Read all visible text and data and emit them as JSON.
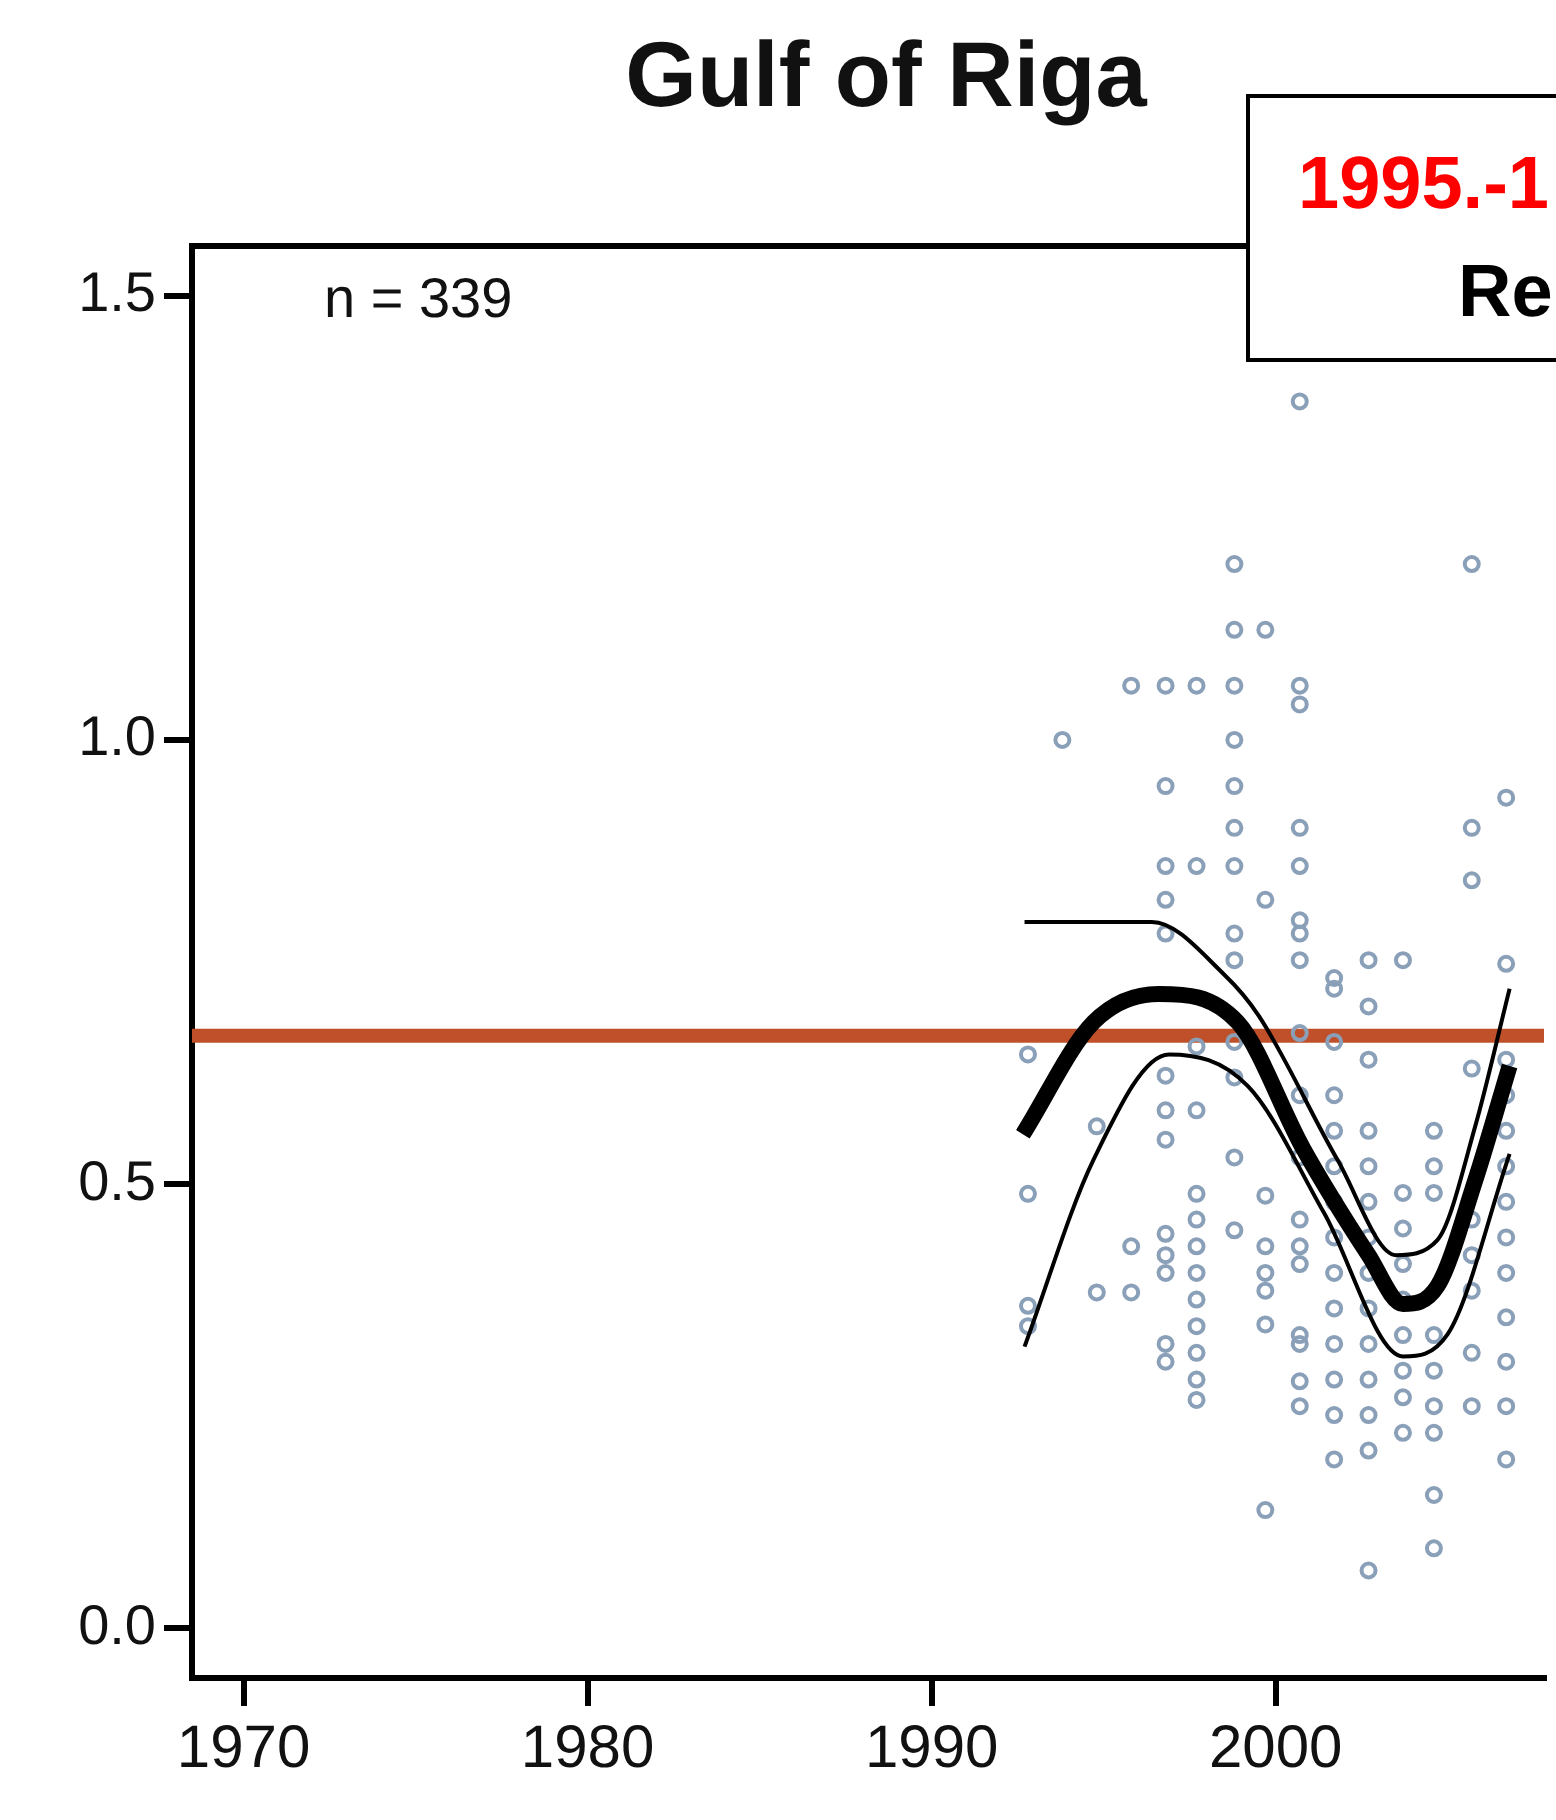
{
  "chart_data": {
    "type": "scatter",
    "title": "Gulf of Riga",
    "xlim": [
      1968.5,
      2007.8
    ],
    "xticks": [
      1970,
      1980,
      1990,
      2000
    ],
    "ylim": [
      -0.056,
      1.556
    ],
    "yticks": [
      {
        "value": 0,
        "label": "0.0"
      },
      {
        "value": 0.5,
        "label": "0.5"
      },
      {
        "value": 1,
        "label": "1.0"
      },
      {
        "value": 1.5,
        "label": "1.5"
      }
    ],
    "grid": false,
    "legend": false,
    "annotations": [
      "n = 339",
      "1995.-1",
      "Re"
    ],
    "ref_lines": [
      {
        "axis": "y",
        "value": 0.667,
        "color": "#c0502a"
      }
    ],
    "series": [
      {
        "type": "scatter",
        "color": "#8a9fb8",
        "marker": "circle",
        "x": [
          1992.8,
          1992.8,
          1992.8,
          1992.8,
          1993.8,
          1994.8,
          1994.8,
          1995.8,
          1995.8,
          1995.8,
          1996.8,
          1996.8,
          1996.8,
          1996.8,
          1996.8,
          1996.8,
          1996.8,
          1996.8,
          1996.8,
          1996.8,
          1996.8,
          1996.8,
          1996.8,
          1997.7,
          1997.7,
          1997.7,
          1997.7,
          1997.7,
          1997.7,
          1997.7,
          1997.7,
          1997.7,
          1997.7,
          1997.7,
          1997.7,
          1997.7,
          1998.8,
          1998.8,
          1998.8,
          1998.8,
          1998.8,
          1998.8,
          1998.8,
          1998.8,
          1998.8,
          1998.8,
          1998.8,
          1998.8,
          1998.8,
          1999.7,
          1999.7,
          1999.7,
          1999.7,
          1999.7,
          1999.7,
          1999.7,
          1999.7,
          2000.7,
          2000.7,
          2000.7,
          2000.7,
          2000.7,
          2000.7,
          2000.7,
          2000.7,
          2000.7,
          2000.7,
          2000.7,
          2000.7,
          2000.7,
          2000.7,
          2000.7,
          2000.7,
          2000.7,
          2000.7,
          2001.7,
          2001.7,
          2001.7,
          2001.7,
          2001.7,
          2001.7,
          2001.7,
          2001.7,
          2001.7,
          2001.7,
          2001.7,
          2001.7,
          2001.7,
          2001.7,
          2002.7,
          2002.7,
          2002.7,
          2002.7,
          2002.7,
          2002.7,
          2002.7,
          2002.7,
          2002.7,
          2002.7,
          2002.7,
          2002.7,
          2002.7,
          2002.7,
          2003.7,
          2003.7,
          2003.7,
          2003.7,
          2003.7,
          2003.7,
          2003.7,
          2003.7,
          2003.7,
          2004.6,
          2004.6,
          2004.6,
          2004.6,
          2004.6,
          2004.6,
          2004.6,
          2004.6,
          2004.6,
          2005.7,
          2005.7,
          2005.7,
          2005.7,
          2005.7,
          2005.7,
          2005.7,
          2005.7,
          2005.7,
          2006.7,
          2006.7,
          2006.7,
          2006.7,
          2006.7,
          2006.7,
          2006.7,
          2006.7,
          2006.7,
          2006.7,
          2006.7,
          2006.7,
          2006.7
        ],
        "values": [
          0.646,
          0.489,
          0.363,
          0.34,
          1.0,
          0.565,
          0.378,
          1.061,
          0.43,
          0.378,
          1.061,
          0.948,
          0.858,
          0.82,
          0.782,
          0.622,
          0.583,
          0.55,
          0.444,
          0.42,
          0.4,
          0.32,
          0.3,
          1.061,
          0.858,
          0.655,
          0.583,
          0.489,
          0.46,
          0.43,
          0.4,
          0.37,
          0.34,
          0.31,
          0.28,
          0.257,
          1.198,
          1.124,
          1.061,
          1.0,
          0.948,
          0.901,
          0.858,
          0.782,
          0.752,
          0.66,
          0.62,
          0.53,
          0.448,
          1.124,
          0.82,
          0.487,
          0.43,
          0.4,
          0.38,
          0.342,
          0.133,
          1.381,
          1.061,
          1.04,
          0.901,
          0.858,
          0.797,
          0.782,
          0.752,
          0.67,
          0.6,
          0.53,
          0.46,
          0.43,
          0.41,
          0.33,
          0.32,
          0.278,
          0.25,
          0.732,
          0.72,
          0.66,
          0.6,
          0.56,
          0.52,
          0.48,
          0.44,
          0.4,
          0.36,
          0.32,
          0.28,
          0.24,
          0.19,
          0.752,
          0.7,
          0.64,
          0.56,
          0.52,
          0.48,
          0.44,
          0.4,
          0.36,
          0.32,
          0.28,
          0.24,
          0.2,
          0.065,
          0.752,
          0.49,
          0.45,
          0.41,
          0.37,
          0.33,
          0.29,
          0.26,
          0.22,
          0.56,
          0.52,
          0.49,
          0.33,
          0.29,
          0.25,
          0.22,
          0.15,
          0.09,
          1.198,
          0.901,
          0.842,
          0.63,
          0.46,
          0.42,
          0.38,
          0.31,
          0.25,
          0.935,
          0.748,
          0.64,
          0.6,
          0.56,
          0.52,
          0.48,
          0.44,
          0.4,
          0.35,
          0.3,
          0.25,
          0.19
        ]
      },
      {
        "type": "line",
        "color": "#000000",
        "marker": "none",
        "x": [
          1992.65,
          1994.7,
          1996.6,
          1998.9,
          2000.8,
          2002.7,
          2003.7,
          2004.7,
          2005.8,
          2006.8
        ],
        "values": [
          0.556,
          0.682,
          0.714,
          0.682,
          0.54,
          0.42,
          0.365,
          0.385,
          0.504,
          0.633
        ]
      },
      {
        "type": "line",
        "color": "#000000",
        "marker": "none",
        "x": [
          1992.7,
          1996.4,
          1998.5,
          1999.5,
          2001.8,
          2003.5,
          2004.7,
          2005.8,
          2006.8
        ],
        "values": [
          0.795,
          0.795,
          0.736,
          0.69,
          0.527,
          0.42,
          0.437,
          0.565,
          0.72
        ]
      },
      {
        "type": "line",
        "color": "#000000",
        "marker": "none",
        "x": [
          1992.7,
          1994.7,
          1996.9,
          1999.2,
          2001.4,
          2003.7,
          2005.0,
          2006.8
        ],
        "values": [
          0.317,
          0.527,
          0.646,
          0.61,
          0.468,
          0.306,
          0.331,
          0.534
        ]
      }
    ]
  }
}
